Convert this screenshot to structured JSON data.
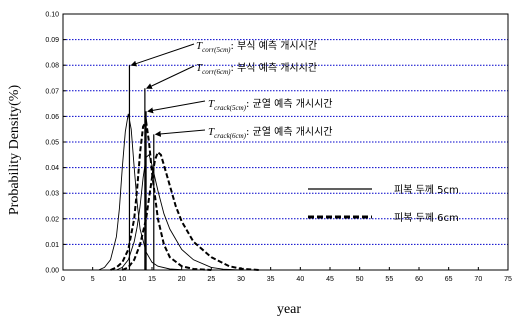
{
  "chart_data": {
    "type": "line",
    "title": "",
    "xlabel": "year",
    "ylabel": "Probability Density(%)",
    "xlim": [
      0,
      75
    ],
    "ylim": [
      0,
      0.1
    ],
    "xticks": [
      "0",
      "5",
      "10",
      "15",
      "20",
      "25",
      "30",
      "35",
      "40",
      "45",
      "50",
      "55",
      "60",
      "65",
      "70",
      "75"
    ],
    "yticks": [
      "0.00",
      "0.01",
      "0.02",
      "0.03",
      "0.04",
      "0.05",
      "0.06",
      "0.07",
      "0.08",
      "0.09",
      "0.10"
    ],
    "grid": "horizontal dotted",
    "grid_color": "#0000cc",
    "series": [
      {
        "name": "피복 두께 5cm",
        "style": "solid",
        "curves": [
          {
            "x": [
              6,
              7,
              8,
              9,
              9.5,
              10,
              10.5,
              11,
              11.5,
              12,
              12.5,
              13,
              14,
              15,
              16,
              18,
              20,
              22,
              25
            ],
            "y": [
              0,
              0.001,
              0.004,
              0.013,
              0.024,
              0.04,
              0.054,
              0.061,
              0.055,
              0.04,
              0.026,
              0.016,
              0.007,
              0.003,
              0.0015,
              0.0004,
              0.0001,
              0,
              0
            ]
          },
          {
            "x": [
              9,
              10,
              11,
              12,
              12.5,
              13,
              13.5,
              14,
              14.5,
              15,
              16,
              17,
              18,
              20,
              22,
              25,
              27,
              30
            ],
            "y": [
              0,
              0.001,
              0.004,
              0.011,
              0.017,
              0.025,
              0.036,
              0.044,
              0.045,
              0.041,
              0.031,
              0.022,
              0.016,
              0.008,
              0.004,
              0.001,
              0.0003,
              0
            ]
          }
        ]
      },
      {
        "name": "피복 두께 6cm",
        "style": "dashed",
        "curves": [
          {
            "x": [
              8,
              9,
              10,
              11,
              12,
              12.5,
              13,
              13.5,
              14,
              14.5,
              15,
              16,
              17,
              18,
              20,
              22,
              25
            ],
            "y": [
              0,
              0.001,
              0.003,
              0.008,
              0.02,
              0.032,
              0.046,
              0.056,
              0.058,
              0.05,
              0.038,
              0.02,
              0.01,
              0.005,
              0.0015,
              0.0004,
              0
            ]
          },
          {
            "x": [
              10,
              11,
              12,
              13,
              14,
              14.5,
              15,
              15.5,
              16,
              16.5,
              17,
              18,
              19,
              20,
              22,
              25,
              28,
              30,
              33
            ],
            "y": [
              0,
              0.001,
              0.004,
              0.01,
              0.02,
              0.028,
              0.036,
              0.043,
              0.046,
              0.045,
              0.041,
              0.033,
              0.025,
              0.019,
              0.011,
              0.005,
              0.0015,
              0.0005,
              0
            ]
          }
        ]
      }
    ],
    "annotations": [
      {
        "symbol": "T",
        "subscript": "corr(5cm)",
        "text": ": 부식  예측  개시시간",
        "x": 11.2,
        "y": 0.08
      },
      {
        "symbol": "T",
        "subscript": "corr(6cm)",
        "text": ": 부식  예측  개시시간",
        "x": 13.8,
        "y": 0.071
      },
      {
        "symbol": "T",
        "subscript": "crack(5cm)",
        "text": ": 균열  예측  개시시간",
        "x": 14.0,
        "y": 0.062
      },
      {
        "symbol": "T",
        "subscript": "crack(6cm)",
        "text": ": 균열  예측  개시시간",
        "x": 15.3,
        "y": 0.053
      }
    ],
    "vertical_markers": [
      11.2,
      13.8,
      14.0,
      15.3
    ],
    "legend": "inside right"
  }
}
